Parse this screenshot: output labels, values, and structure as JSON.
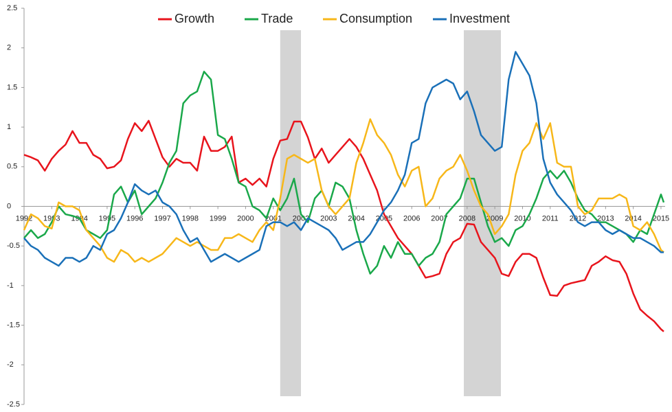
{
  "chart_data": {
    "type": "line",
    "x": [
      1992,
      1992.25,
      1992.5,
      1992.75,
      1993,
      1993.25,
      1993.5,
      1993.75,
      1994,
      1994.25,
      1994.5,
      1994.75,
      1995,
      1995.25,
      1995.5,
      1995.75,
      1996,
      1996.25,
      1996.5,
      1996.75,
      1997,
      1997.25,
      1997.5,
      1997.75,
      1998,
      1998.25,
      1998.5,
      1998.75,
      1999,
      1999.25,
      1999.5,
      1999.75,
      2000,
      2000.25,
      2000.5,
      2000.75,
      2001,
      2001.25,
      2001.5,
      2001.75,
      2002,
      2002.25,
      2002.5,
      2002.75,
      2003,
      2003.25,
      2003.5,
      2003.75,
      2004,
      2004.25,
      2004.5,
      2004.75,
      2005,
      2005.25,
      2005.5,
      2005.75,
      2006,
      2006.25,
      2006.5,
      2006.75,
      2007,
      2007.25,
      2007.5,
      2007.75,
      2008,
      2008.25,
      2008.5,
      2008.75,
      2009,
      2009.25,
      2009.5,
      2009.75,
      2010,
      2010.25,
      2010.5,
      2010.75,
      2011,
      2011.25,
      2011.5,
      2011.75,
      2012,
      2012.25,
      2012.5,
      2012.75,
      2013,
      2013.25,
      2013.5,
      2013.75,
      2014,
      2014.25,
      2014.5,
      2014.75,
      2015,
      2015.1
    ],
    "series": [
      {
        "name": "Growth",
        "color": "#e8141c",
        "values": [
          0.65,
          0.62,
          0.58,
          0.45,
          0.6,
          0.7,
          0.78,
          0.95,
          0.8,
          0.8,
          0.65,
          0.6,
          0.48,
          0.5,
          0.58,
          0.85,
          1.05,
          0.95,
          1.08,
          0.85,
          0.62,
          0.5,
          0.6,
          0.55,
          0.55,
          0.45,
          0.88,
          0.7,
          0.7,
          0.75,
          0.88,
          0.3,
          0.35,
          0.27,
          0.35,
          0.25,
          0.6,
          0.83,
          0.85,
          1.07,
          1.07,
          0.87,
          0.6,
          0.73,
          0.55,
          0.65,
          0.75,
          0.85,
          0.75,
          0.6,
          0.4,
          0.2,
          -0.1,
          -0.25,
          -0.4,
          -0.5,
          -0.6,
          -0.75,
          -0.9,
          -0.88,
          -0.85,
          -0.6,
          -0.45,
          -0.4,
          -0.22,
          -0.23,
          -0.45,
          -0.55,
          -0.65,
          -0.85,
          -0.88,
          -0.7,
          -0.6,
          -0.6,
          -0.65,
          -0.9,
          -1.12,
          -1.13,
          -1.0,
          -0.97,
          -0.95,
          -0.93,
          -0.75,
          -0.7,
          -0.63,
          -0.68,
          -0.7,
          -0.85,
          -1.1,
          -1.3,
          -1.38,
          -1.45,
          -1.55,
          -1.58
        ]
      },
      {
        "name": "Trade",
        "color": "#1aa84a",
        "values": [
          -0.4,
          -0.3,
          -0.4,
          -0.35,
          -0.2,
          0.0,
          -0.1,
          -0.12,
          -0.15,
          -0.3,
          -0.35,
          -0.4,
          -0.3,
          0.15,
          0.25,
          0.05,
          0.2,
          -0.1,
          0.0,
          0.1,
          0.3,
          0.55,
          0.7,
          1.3,
          1.4,
          1.45,
          1.7,
          1.6,
          0.9,
          0.85,
          0.6,
          0.3,
          0.25,
          0.0,
          -0.05,
          -0.15,
          0.1,
          -0.05,
          0.1,
          0.35,
          -0.1,
          -0.2,
          0.1,
          0.2,
          0.0,
          0.3,
          0.25,
          0.1,
          -0.3,
          -0.6,
          -0.85,
          -0.75,
          -0.5,
          -0.65,
          -0.45,
          -0.6,
          -0.6,
          -0.75,
          -0.65,
          -0.6,
          -0.45,
          -0.1,
          0.0,
          0.1,
          0.35,
          0.35,
          0.05,
          -0.25,
          -0.45,
          -0.4,
          -0.5,
          -0.3,
          -0.25,
          -0.1,
          0.1,
          0.35,
          0.45,
          0.35,
          0.45,
          0.3,
          0.1,
          -0.05,
          -0.1,
          -0.2,
          -0.2,
          -0.25,
          -0.3,
          -0.35,
          -0.45,
          -0.3,
          -0.35,
          -0.1,
          0.15,
          0.05
        ]
      },
      {
        "name": "Consumption",
        "color": "#f7b719",
        "values": [
          -0.3,
          -0.1,
          -0.15,
          -0.25,
          -0.28,
          0.05,
          0.0,
          0.0,
          -0.05,
          -0.3,
          -0.4,
          -0.5,
          -0.65,
          -0.7,
          -0.55,
          -0.6,
          -0.7,
          -0.65,
          -0.7,
          -0.65,
          -0.6,
          -0.5,
          -0.4,
          -0.45,
          -0.5,
          -0.45,
          -0.5,
          -0.55,
          -0.55,
          -0.4,
          -0.4,
          -0.35,
          -0.4,
          -0.45,
          -0.3,
          -0.2,
          -0.3,
          0.1,
          0.6,
          0.65,
          0.6,
          0.55,
          0.6,
          0.2,
          0.0,
          -0.1,
          0.0,
          0.1,
          0.55,
          0.8,
          1.1,
          0.9,
          0.8,
          0.65,
          0.4,
          0.25,
          0.45,
          0.5,
          0.0,
          0.1,
          0.35,
          0.45,
          0.5,
          0.65,
          0.45,
          0.2,
          0.0,
          -0.1,
          -0.35,
          -0.25,
          -0.1,
          0.4,
          0.7,
          0.8,
          1.05,
          0.85,
          1.05,
          0.55,
          0.5,
          0.5,
          0.0,
          -0.1,
          -0.05,
          0.1,
          0.1,
          0.1,
          0.15,
          0.1,
          -0.25,
          -0.3,
          -0.2,
          -0.35,
          -0.55,
          -0.58
        ]
      },
      {
        "name": "Investment",
        "color": "#1a70b8",
        "values": [
          -0.4,
          -0.5,
          -0.55,
          -0.65,
          -0.7,
          -0.75,
          -0.65,
          -0.65,
          -0.7,
          -0.65,
          -0.5,
          -0.55,
          -0.35,
          -0.3,
          -0.15,
          0.05,
          0.28,
          0.2,
          0.15,
          0.2,
          0.05,
          0.0,
          -0.1,
          -0.3,
          -0.45,
          -0.4,
          -0.55,
          -0.7,
          -0.65,
          -0.6,
          -0.65,
          -0.7,
          -0.65,
          -0.6,
          -0.55,
          -0.25,
          -0.2,
          -0.2,
          -0.25,
          -0.2,
          -0.3,
          -0.15,
          -0.2,
          -0.25,
          -0.3,
          -0.4,
          -0.55,
          -0.5,
          -0.45,
          -0.45,
          -0.35,
          -0.2,
          -0.05,
          0.05,
          0.2,
          0.4,
          0.8,
          0.85,
          1.3,
          1.5,
          1.55,
          1.6,
          1.55,
          1.35,
          1.45,
          1.2,
          0.9,
          0.8,
          0.7,
          0.75,
          1.6,
          1.95,
          1.8,
          1.65,
          1.3,
          0.6,
          0.3,
          0.15,
          0.05,
          -0.05,
          -0.2,
          -0.25,
          -0.2,
          -0.2,
          -0.3,
          -0.35,
          -0.3,
          -0.35,
          -0.4,
          -0.4,
          -0.45,
          -0.5,
          -0.58,
          -0.58
        ]
      }
    ],
    "shaded_periods": [
      [
        2001.25,
        2002.0
      ],
      [
        2007.88,
        2009.22
      ]
    ],
    "xlim": [
      1992,
      2015.15
    ],
    "xticks": [
      1992,
      1993,
      1994,
      1995,
      1996,
      1997,
      1998,
      1999,
      2000,
      2001,
      2002,
      2003,
      2004,
      2005,
      2006,
      2007,
      2008,
      2009,
      2010,
      2011,
      2012,
      2013,
      2014,
      2015
    ],
    "ylim": [
      -2.5,
      2.5
    ],
    "yticks": [
      -2.5,
      -2,
      -1.5,
      -1,
      -0.5,
      0,
      0.5,
      1,
      1.5,
      2,
      2.5
    ],
    "legend": "top"
  }
}
